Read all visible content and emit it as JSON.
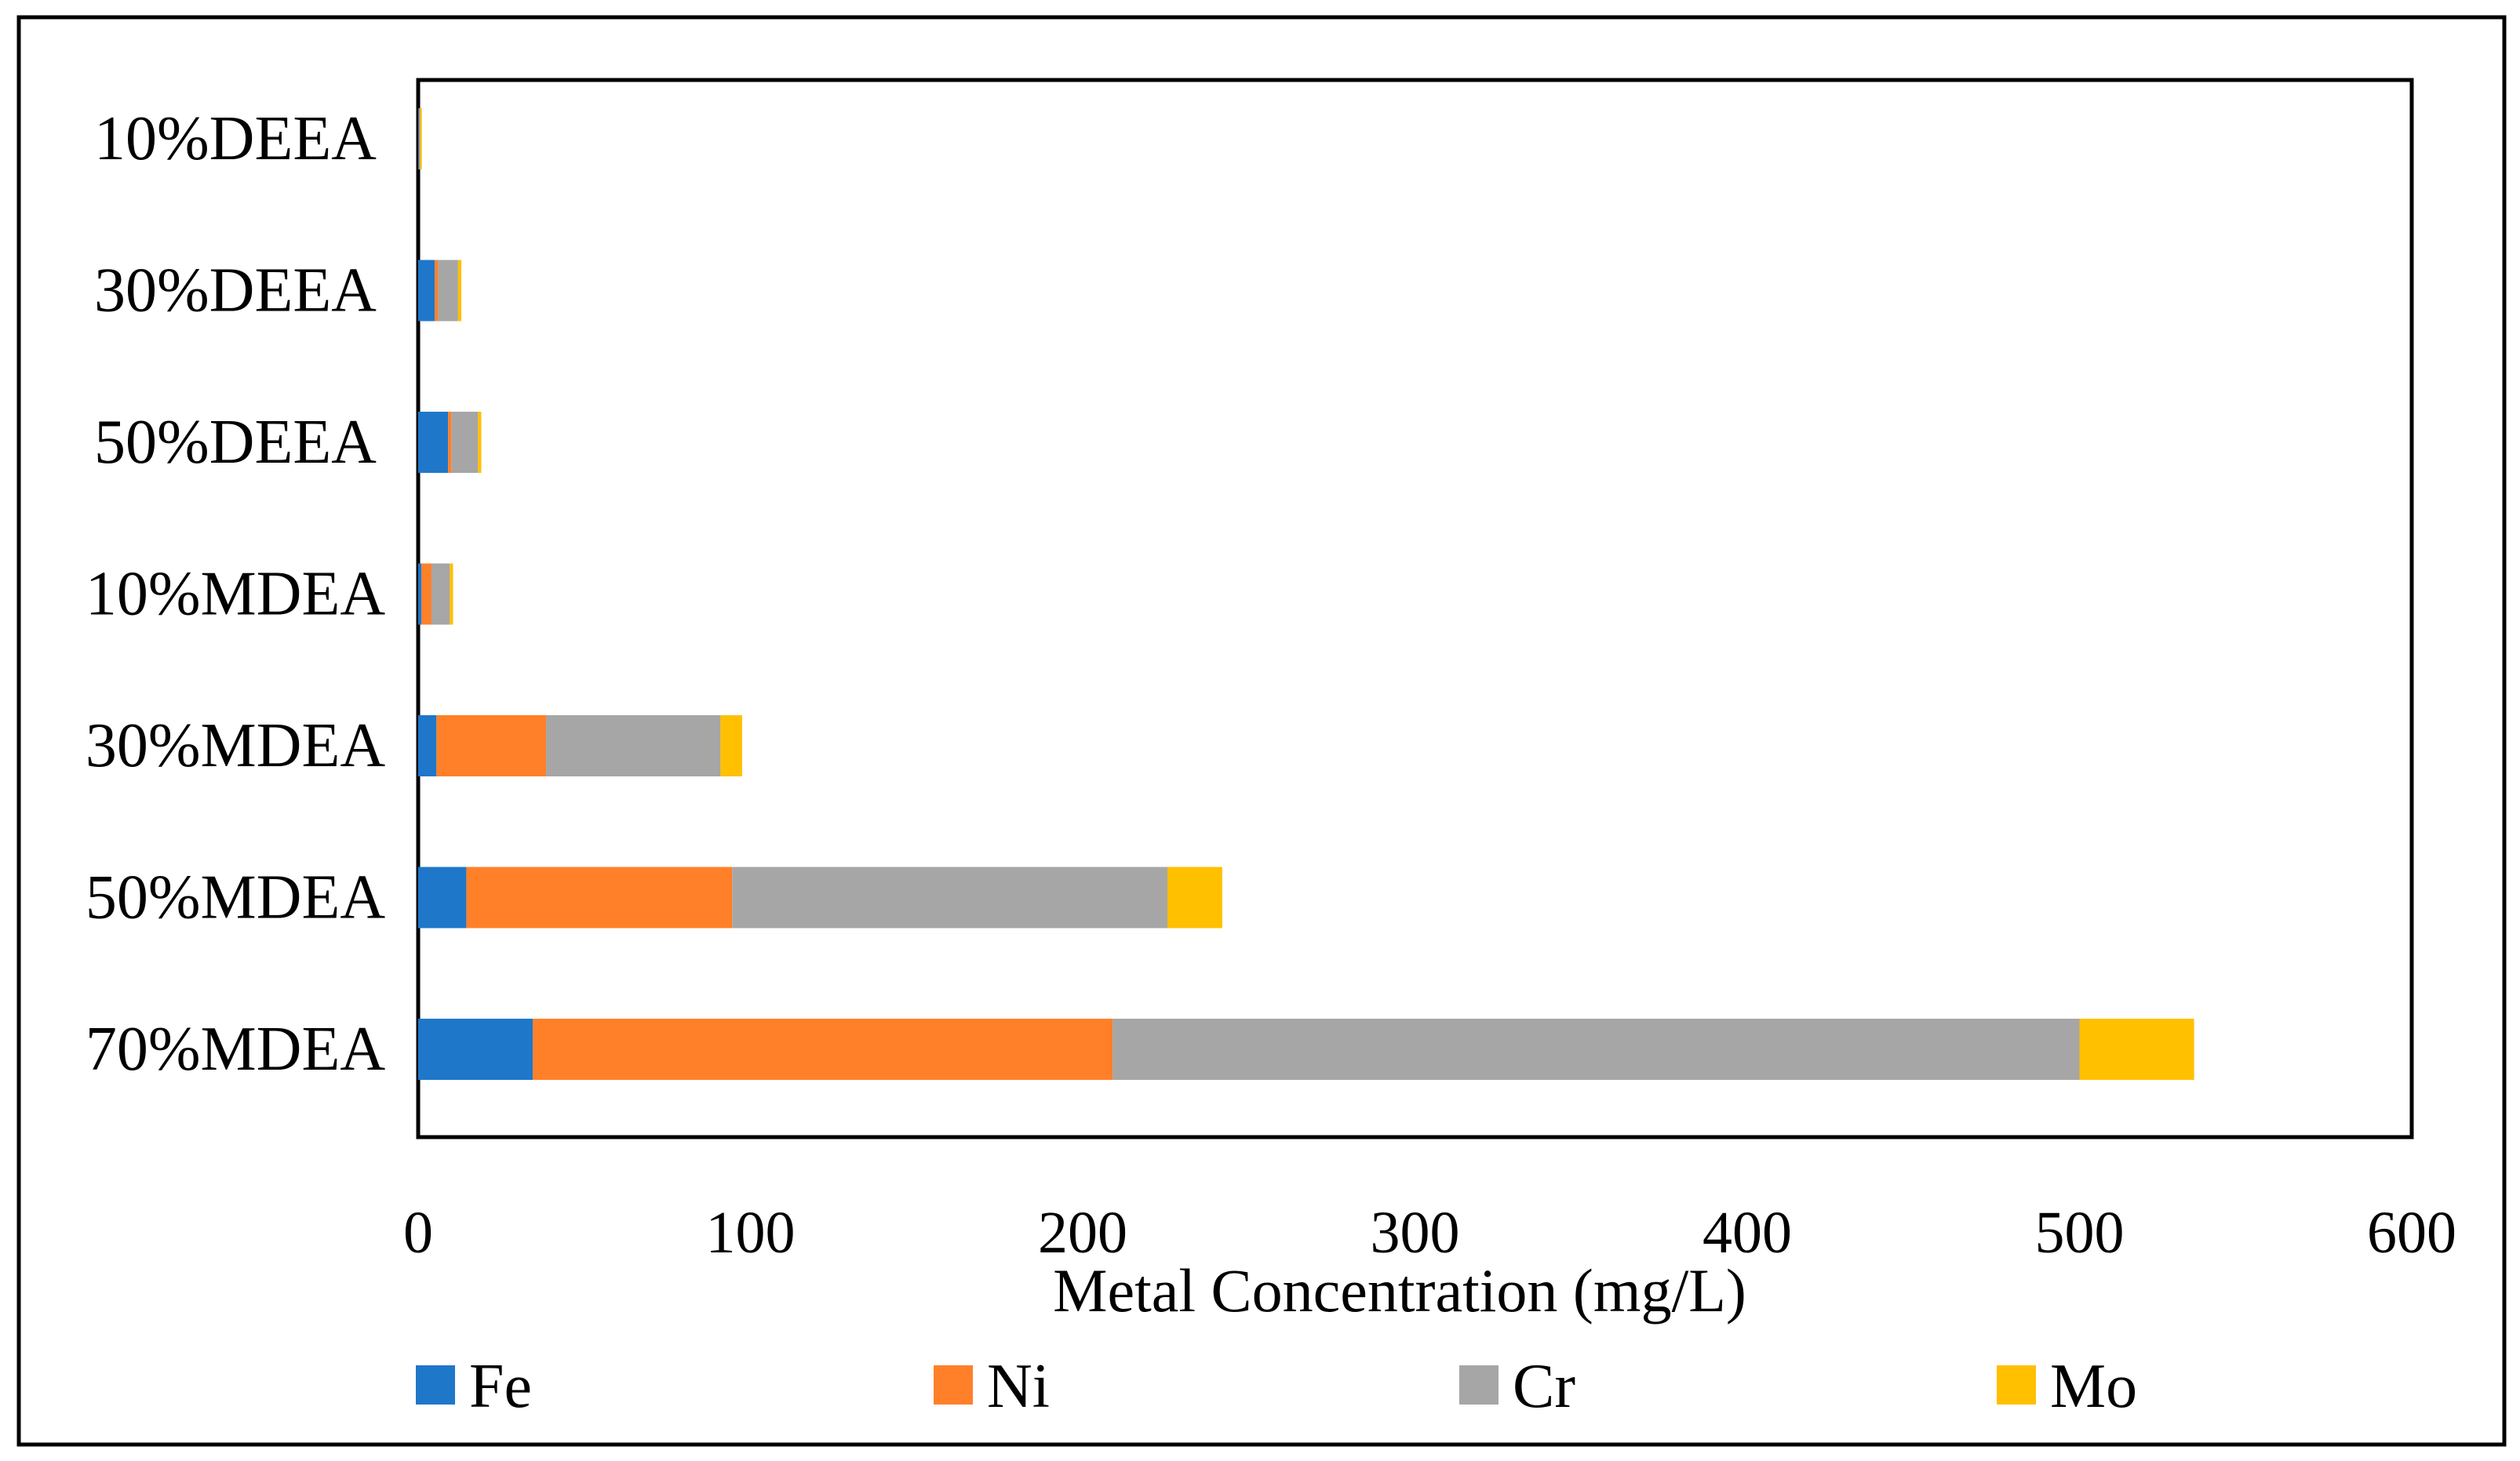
{
  "chart_data": {
    "type": "bar",
    "orientation": "horizontal",
    "stacked": true,
    "title": "",
    "xlabel": "Metal Concentration (mg/L)",
    "ylabel": "",
    "xlim": [
      0,
      600
    ],
    "xticks": [
      "0",
      "100",
      "200",
      "300",
      "400",
      "500",
      "600"
    ],
    "grid": false,
    "legend_position": "bottom",
    "categories": [
      "10%DEEA",
      "30%DEEA",
      "50%DEEA",
      "10%MDEA",
      "30%MDEA",
      "50%MDEA",
      "70%MDEA"
    ],
    "series": [
      {
        "name": "Fe",
        "color": "#1F77C9",
        "values": [
          0.2,
          5,
          9,
          1,
          5.5,
          14.5,
          34.5
        ]
      },
      {
        "name": "Ni",
        "color": "#FF8029",
        "values": [
          0.1,
          1,
          1,
          3,
          33,
          80,
          174.5
        ]
      },
      {
        "name": "Cr",
        "color": "#A6A6A6",
        "values": [
          0.3,
          6,
          8,
          5.5,
          52.5,
          131,
          291
        ]
      },
      {
        "name": "Mo",
        "color": "#FFC000",
        "values": [
          0.5,
          1,
          1,
          1,
          6.5,
          16.5,
          34.5
        ]
      }
    ]
  }
}
